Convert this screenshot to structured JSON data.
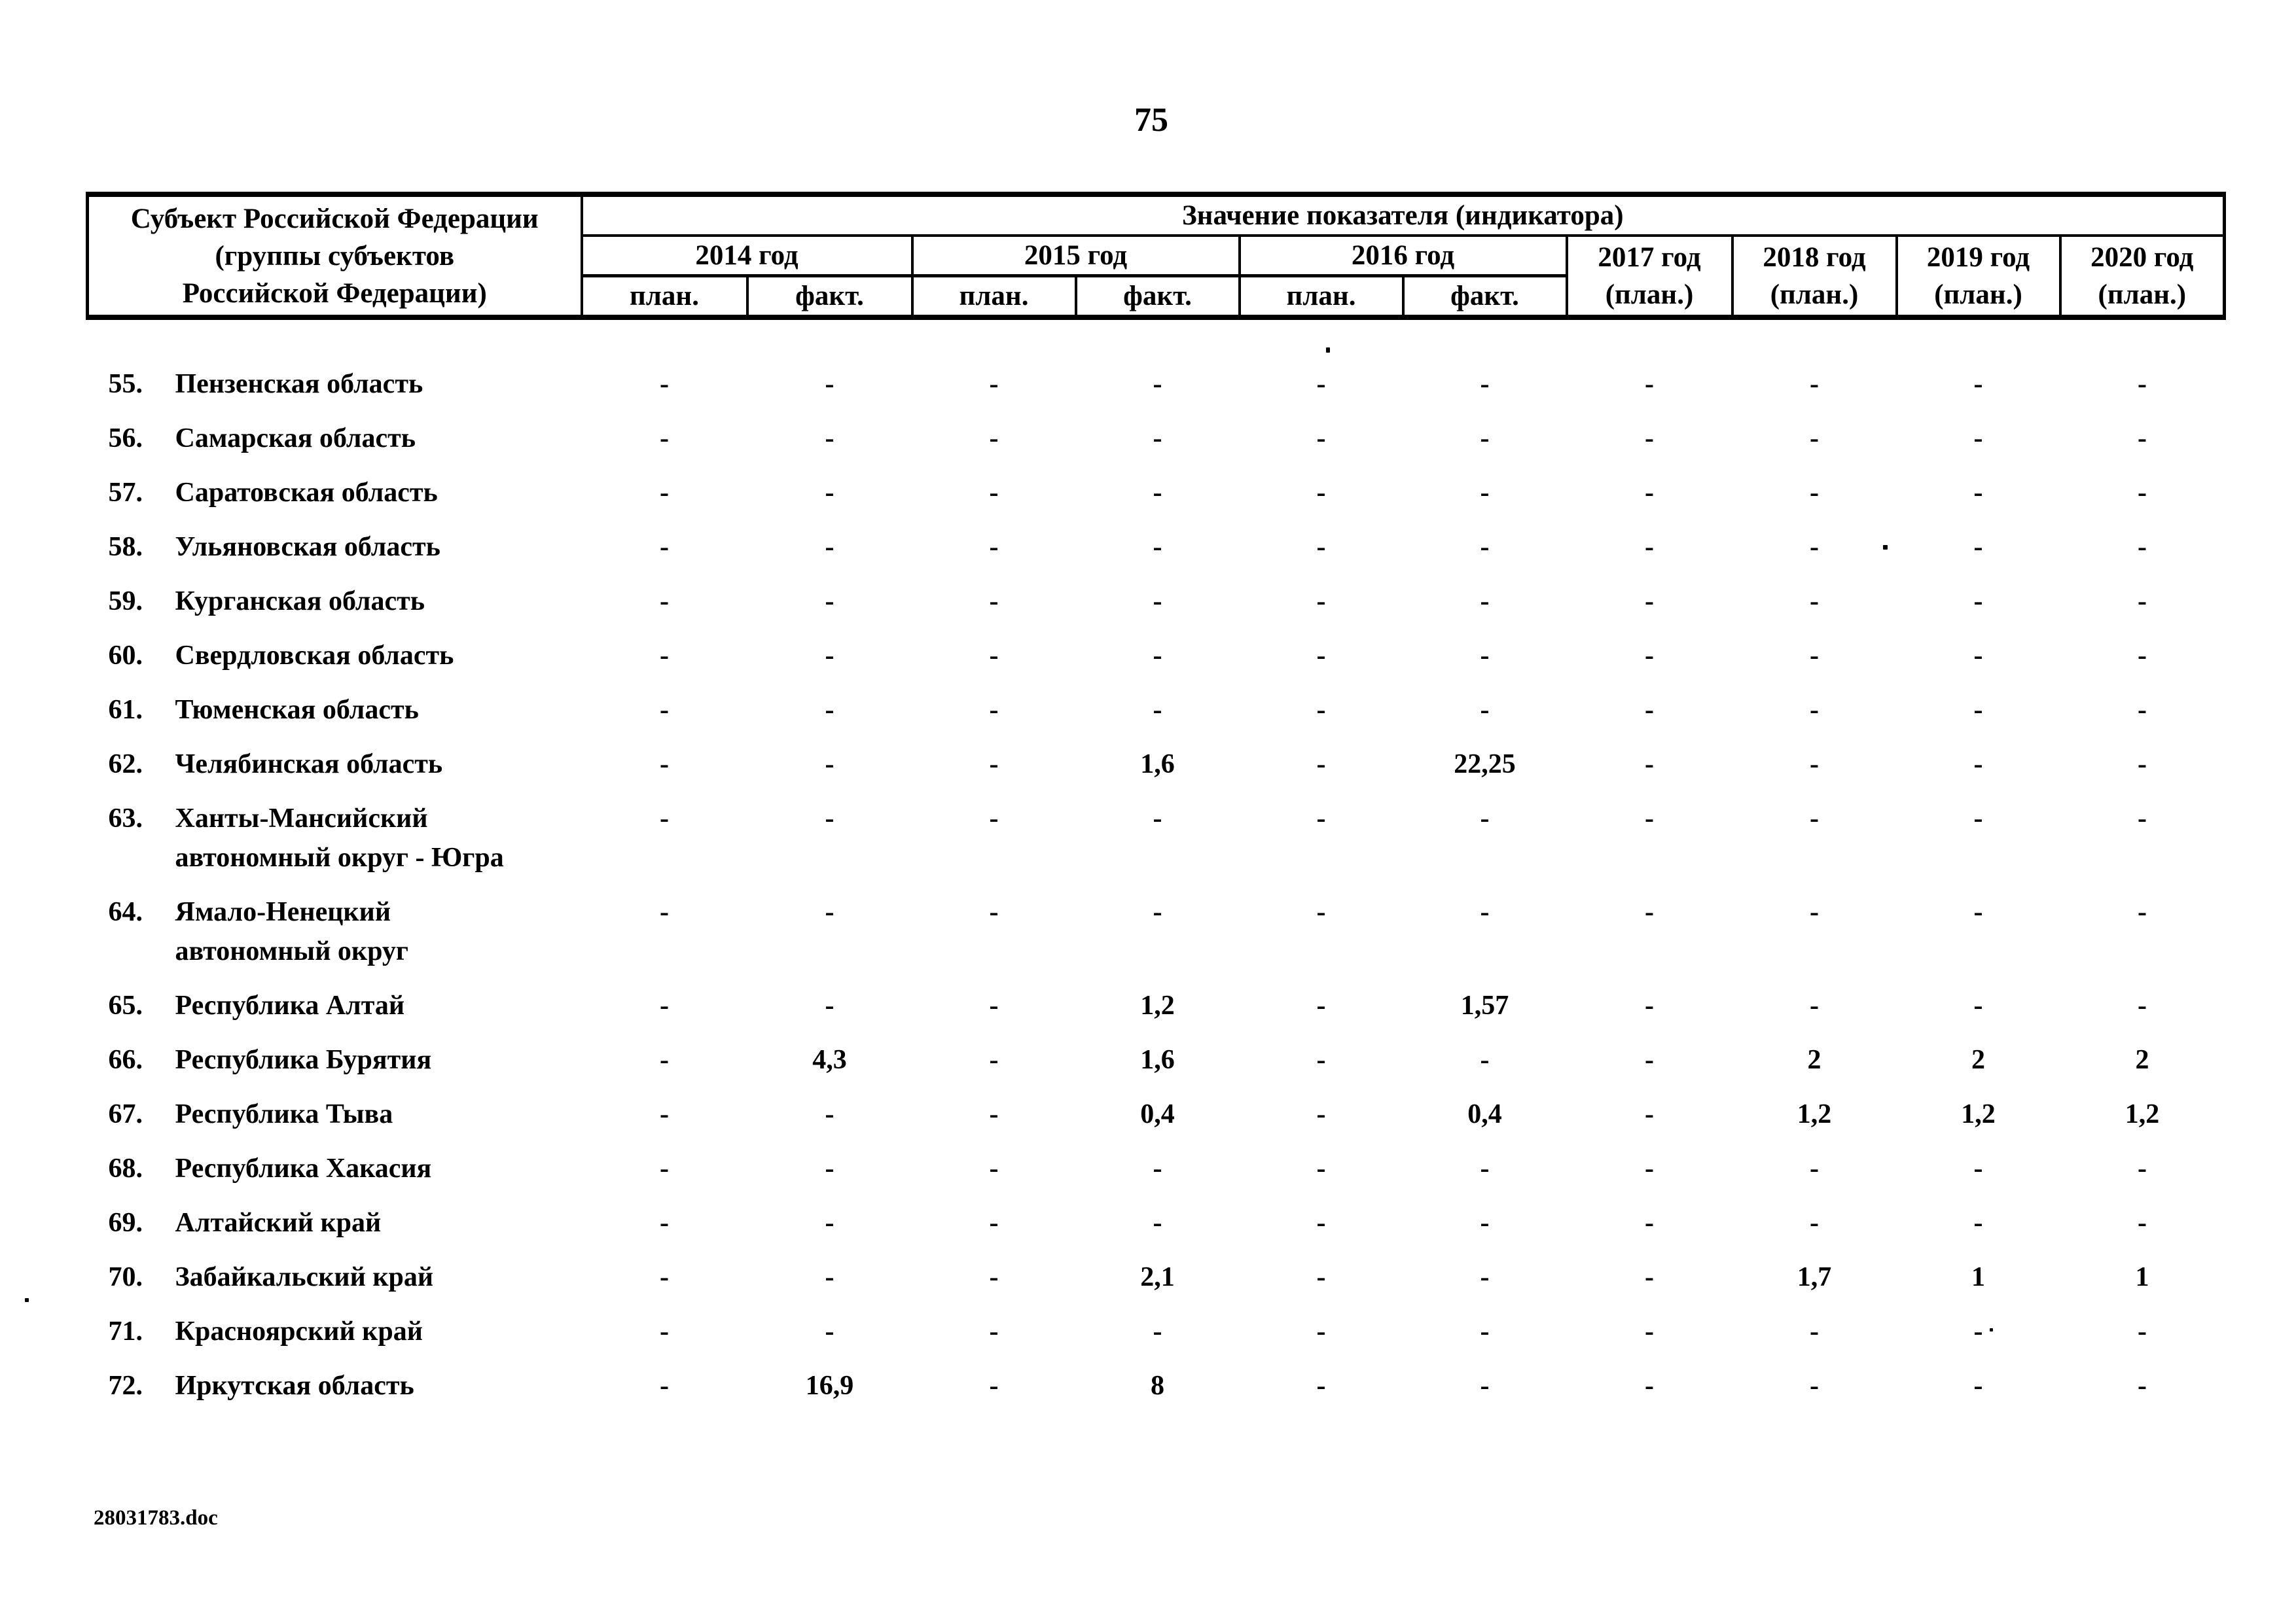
{
  "page": {
    "number": "75",
    "footer": "28031783.doc"
  },
  "table": {
    "subject_header_lines": [
      "Субъект Российской Федерации",
      "(группы субъектов",
      "Российской Федерации)"
    ],
    "value_header": "Значение показателя (индикатора)",
    "year_groups": [
      {
        "label": "2014 год",
        "plan": "план.",
        "fact": "факт."
      },
      {
        "label": "2015 год",
        "plan": "план.",
        "fact": "факт."
      },
      {
        "label": "2016 год",
        "plan": "план.",
        "fact": "факт."
      }
    ],
    "plan_year_headers": [
      {
        "year": "2017 год",
        "note": "(план.)"
      },
      {
        "year": "2018 год",
        "note": "(план.)"
      },
      {
        "year": "2019 год",
        "note": "(план.)"
      },
      {
        "year": "2020 год",
        "note": "(план.)"
      }
    ],
    "rows": [
      {
        "num": "55.",
        "name": "Пензенская область",
        "values": [
          "-",
          "-",
          "-",
          "-",
          "-",
          "-",
          "-",
          "-",
          "-",
          "-"
        ]
      },
      {
        "num": "56.",
        "name": "Самарская область",
        "values": [
          "-",
          "-",
          "-",
          "-",
          "-",
          "-",
          "-",
          "-",
          "-",
          "-"
        ]
      },
      {
        "num": "57.",
        "name": "Саратовская область",
        "values": [
          "-",
          "-",
          "-",
          "-",
          "-",
          "-",
          "-",
          "-",
          "-",
          "-"
        ]
      },
      {
        "num": "58.",
        "name": "Ульяновская область",
        "values": [
          "-",
          "-",
          "-",
          "-",
          "-",
          "-",
          "-",
          "-",
          "-",
          "-"
        ]
      },
      {
        "num": "59.",
        "name": "Курганская область",
        "values": [
          "-",
          "-",
          "-",
          "-",
          "-",
          "-",
          "-",
          "-",
          "-",
          "-"
        ]
      },
      {
        "num": "60.",
        "name": "Свердловская область",
        "values": [
          "-",
          "-",
          "-",
          "-",
          "-",
          "-",
          "-",
          "-",
          "-",
          "-"
        ]
      },
      {
        "num": "61.",
        "name": "Тюменская область",
        "values": [
          "-",
          "-",
          "-",
          "-",
          "-",
          "-",
          "-",
          "-",
          "-",
          "-"
        ]
      },
      {
        "num": "62.",
        "name": "Челябинская область",
        "values": [
          "-",
          "-",
          "-",
          "1,6",
          "-",
          "22,25",
          "-",
          "-",
          "-",
          "-"
        ]
      },
      {
        "num": "63.",
        "name": "Ханты-Мансийский\nавтономный округ - Югра",
        "values": [
          "-",
          "-",
          "-",
          "-",
          "-",
          "-",
          "-",
          "-",
          "-",
          "-"
        ]
      },
      {
        "num": "64.",
        "name": "Ямало-Ненецкий\nавтономный округ",
        "values": [
          "-",
          "-",
          "-",
          "-",
          "-",
          "-",
          "-",
          "-",
          "-",
          "-"
        ]
      },
      {
        "num": "65.",
        "name": "Республика Алтай",
        "values": [
          "-",
          "-",
          "-",
          "1,2",
          "-",
          "1,57",
          "-",
          "-",
          "-",
          "-"
        ]
      },
      {
        "num": "66.",
        "name": "Республика Бурятия",
        "values": [
          "-",
          "4,3",
          "-",
          "1,6",
          "-",
          "-",
          "-",
          "2",
          "2",
          "2"
        ]
      },
      {
        "num": "67.",
        "name": "Республика Тыва",
        "values": [
          "-",
          "-",
          "-",
          "0,4",
          "-",
          "0,4",
          "-",
          "1,2",
          "1,2",
          "1,2"
        ]
      },
      {
        "num": "68.",
        "name": "Республика Хакасия",
        "values": [
          "-",
          "-",
          "-",
          "-",
          "-",
          "-",
          "-",
          "-",
          "-",
          "-"
        ]
      },
      {
        "num": "69.",
        "name": "Алтайский край",
        "values": [
          "-",
          "-",
          "-",
          "-",
          "-",
          "-",
          "-",
          "-",
          "-",
          "-"
        ]
      },
      {
        "num": "70.",
        "name": "Забайкальский край",
        "values": [
          "-",
          "-",
          "-",
          "2,1",
          "-",
          "-",
          "-",
          "1,7",
          "1",
          "1"
        ]
      },
      {
        "num": "71.",
        "name": "Красноярский край",
        "values": [
          "-",
          "-",
          "-",
          "-",
          "-",
          "-",
          "-",
          "-",
          "-",
          "-"
        ]
      },
      {
        "num": "72.",
        "name": "Иркутская область",
        "values": [
          "-",
          "16,9",
          "-",
          "8",
          "-",
          "-",
          "-",
          "-",
          "-",
          "-"
        ]
      }
    ]
  }
}
